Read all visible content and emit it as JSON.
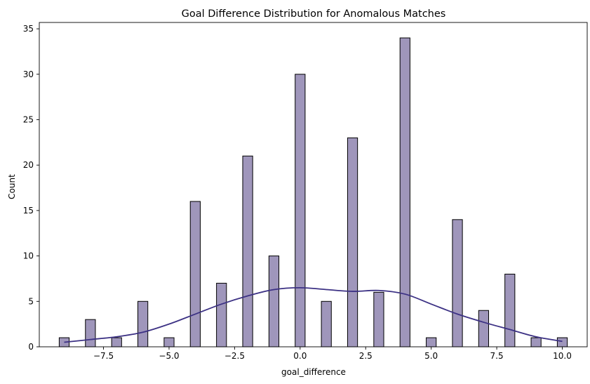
{
  "chart_data": {
    "type": "bar",
    "title": "Goal Difference Distribution for Anomalous Matches",
    "xlabel": "goal_difference",
    "ylabel": "Count",
    "xlim": [
      -9.95,
      10.95
    ],
    "ylim": [
      0,
      35.7
    ],
    "x_ticks": [
      -7.5,
      -5.0,
      -2.5,
      0.0,
      2.5,
      5.0,
      7.5,
      10.0
    ],
    "x_tick_labels": [
      "−7.5",
      "−5.0",
      "−2.5",
      "0.0",
      "2.5",
      "5.0",
      "7.5",
      "10.0"
    ],
    "y_ticks": [
      0,
      5,
      10,
      15,
      20,
      25,
      30,
      35
    ],
    "y_tick_labels": [
      "0",
      "5",
      "10",
      "15",
      "20",
      "25",
      "30",
      "35"
    ],
    "bin_width": 0.38,
    "bars": [
      {
        "x": -9,
        "count": 1
      },
      {
        "x": -8,
        "count": 3
      },
      {
        "x": -7,
        "count": 1
      },
      {
        "x": -6,
        "count": 5
      },
      {
        "x": -5,
        "count": 1
      },
      {
        "x": -4,
        "count": 16
      },
      {
        "x": -3,
        "count": 7
      },
      {
        "x": -2,
        "count": 21
      },
      {
        "x": -1,
        "count": 10
      },
      {
        "x": 0,
        "count": 30
      },
      {
        "x": 1,
        "count": 5
      },
      {
        "x": 2,
        "count": 23
      },
      {
        "x": 3,
        "count": 6
      },
      {
        "x": 4,
        "count": 34
      },
      {
        "x": 5,
        "count": 1
      },
      {
        "x": 6,
        "count": 14
      },
      {
        "x": 7,
        "count": 4
      },
      {
        "x": 8,
        "count": 8
      },
      {
        "x": 9,
        "count": 1
      },
      {
        "x": 10,
        "count": 1
      }
    ],
    "kde": [
      {
        "x": -9,
        "y": 0.5
      },
      {
        "x": -8,
        "y": 0.8
      },
      {
        "x": -7,
        "y": 1.1
      },
      {
        "x": -6,
        "y": 1.6
      },
      {
        "x": -5,
        "y": 2.5
      },
      {
        "x": -4,
        "y": 3.6
      },
      {
        "x": -3,
        "y": 4.7
      },
      {
        "x": -2,
        "y": 5.6
      },
      {
        "x": -1,
        "y": 6.3
      },
      {
        "x": 0,
        "y": 6.5
      },
      {
        "x": 1,
        "y": 6.3
      },
      {
        "x": 2,
        "y": 6.1
      },
      {
        "x": 3,
        "y": 6.2
      },
      {
        "x": 4,
        "y": 5.8
      },
      {
        "x": 5,
        "y": 4.7
      },
      {
        "x": 6,
        "y": 3.6
      },
      {
        "x": 7,
        "y": 2.7
      },
      {
        "x": 8,
        "y": 1.9
      },
      {
        "x": 9,
        "y": 1.1
      },
      {
        "x": 10,
        "y": 0.6
      }
    ],
    "grid": false,
    "legend": "none",
    "colors": {
      "bar_fill": "#9f96bb",
      "bar_edge": "#000000",
      "kde_line": "#3c3184"
    }
  }
}
